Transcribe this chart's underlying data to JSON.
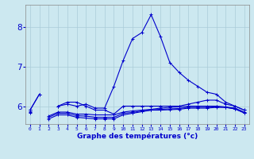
{
  "title": "Graphe des températures (°c)",
  "x_values": [
    0,
    1,
    2,
    3,
    4,
    5,
    6,
    7,
    8,
    9,
    10,
    11,
    12,
    13,
    14,
    15,
    16,
    17,
    18,
    19,
    20,
    21,
    22,
    23
  ],
  "line1": [
    5.9,
    6.3,
    null,
    6.0,
    6.1,
    6.1,
    6.0,
    5.9,
    5.9,
    5.8,
    6.0,
    6.0,
    6.0,
    6.0,
    6.0,
    6.0,
    6.0,
    6.05,
    6.1,
    6.15,
    6.15,
    6.05,
    6.0,
    5.9
  ],
  "line2": [
    5.85,
    null,
    5.75,
    5.85,
    5.85,
    5.8,
    5.8,
    5.78,
    5.78,
    5.78,
    5.85,
    5.88,
    5.9,
    5.92,
    5.95,
    5.97,
    5.98,
    6.0,
    6.0,
    6.0,
    6.0,
    5.98,
    5.95,
    5.85
  ],
  "line3": [
    5.82,
    null,
    5.72,
    5.82,
    5.82,
    5.76,
    5.75,
    5.72,
    5.72,
    5.72,
    5.82,
    5.84,
    5.88,
    5.9,
    5.92,
    5.93,
    5.94,
    5.97,
    5.97,
    5.97,
    5.98,
    5.97,
    5.93,
    5.83
  ],
  "line4": [
    5.9,
    6.3,
    null,
    6.0,
    6.05,
    6.0,
    6.05,
    5.95,
    5.95,
    6.5,
    7.15,
    7.7,
    7.85,
    8.3,
    7.75,
    7.1,
    6.85,
    6.65,
    6.5,
    6.35,
    6.3,
    6.1,
    6.0,
    5.9
  ],
  "line5": [
    5.86,
    null,
    5.68,
    5.78,
    5.78,
    5.72,
    5.7,
    5.68,
    5.68,
    5.68,
    5.78,
    5.82,
    5.86,
    5.9,
    5.9,
    5.91,
    5.92,
    5.95,
    5.95,
    5.95,
    5.97,
    5.97,
    5.93,
    5.83
  ],
  "line_color": "#0000cc",
  "marker": "+",
  "bg_color": "#cce8f0",
  "grid_color": "#aaccd8",
  "axis_color": "#555555",
  "text_color": "#0000cc",
  "ylim": [
    5.55,
    8.55
  ],
  "xlim": [
    -0.5,
    23.5
  ],
  "yticks": [
    6,
    7,
    8
  ],
  "xtick_labels": [
    "0",
    "1",
    "2",
    "3",
    "4",
    "5",
    "6",
    "7",
    "8",
    "9",
    "10",
    "11",
    "12",
    "13",
    "14",
    "15",
    "16",
    "17",
    "18",
    "19",
    "20",
    "21",
    "22",
    "23"
  ]
}
